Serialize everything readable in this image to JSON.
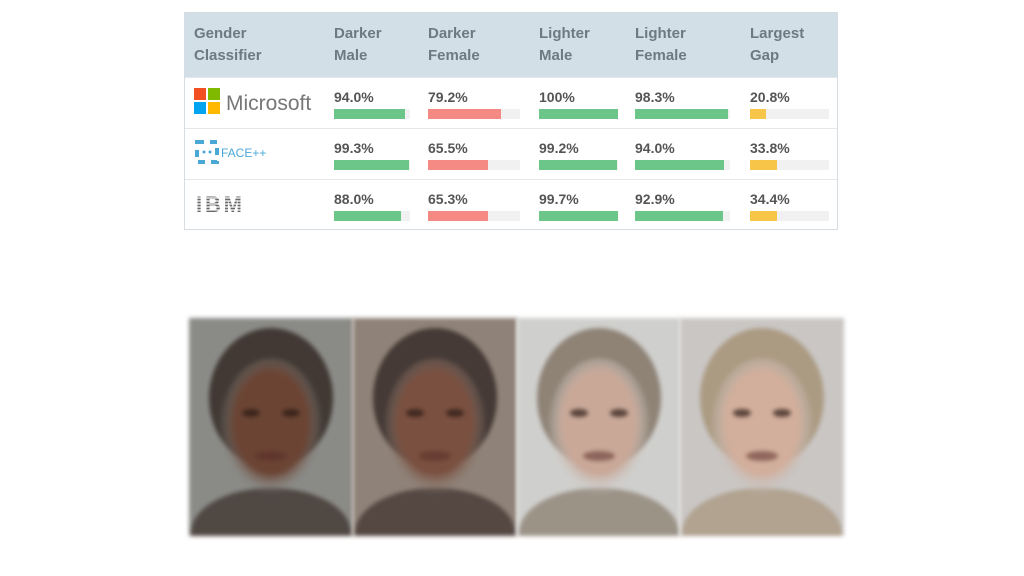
{
  "chart_data": {
    "type": "table",
    "columns": [
      "Gender\nClassifier",
      "Darker\nMale",
      "Darker\nFemale",
      "Lighter\nMale",
      "Lighter\nFemale",
      "Largest\nGap"
    ],
    "rows": [
      {
        "classifier": "Microsoft",
        "values": [
          94.0,
          79.2,
          100,
          98.3,
          20.8
        ],
        "labels": [
          "94.0%",
          "79.2%",
          "100%",
          "98.3%",
          "20.8%"
        ]
      },
      {
        "classifier": "FACE++",
        "values": [
          99.3,
          65.5,
          99.2,
          94.0,
          33.8
        ],
        "labels": [
          "99.3%",
          "65.5%",
          "99.2%",
          "94.0%",
          "33.8%"
        ]
      },
      {
        "classifier": "IBM",
        "values": [
          88.0,
          65.3,
          99.7,
          92.9,
          34.4
        ],
        "labels": [
          "88.0%",
          "65.3%",
          "99.7%",
          "92.9%",
          "34.4%"
        ]
      }
    ],
    "bar_colors": [
      "#6cc68a",
      "#f58a85",
      "#6cc68a",
      "#6cc68a",
      "#f7c548"
    ],
    "ylim": [
      0,
      100
    ]
  },
  "faces": [
    {
      "label": "darker-male",
      "skin": "#6b4434",
      "hair": "#2a1d18",
      "bg": "#8a8a86"
    },
    {
      "label": "darker-female",
      "skin": "#7a5040",
      "hair": "#2e2220",
      "bg": "#8f8278"
    },
    {
      "label": "lighter-male",
      "skin": "#c9a898",
      "hair": "#7a6a58",
      "bg": "#cfcfcd"
    },
    {
      "label": "lighter-female",
      "skin": "#d2ae9c",
      "hair": "#a28c6e",
      "bg": "#c9c6c4"
    }
  ]
}
